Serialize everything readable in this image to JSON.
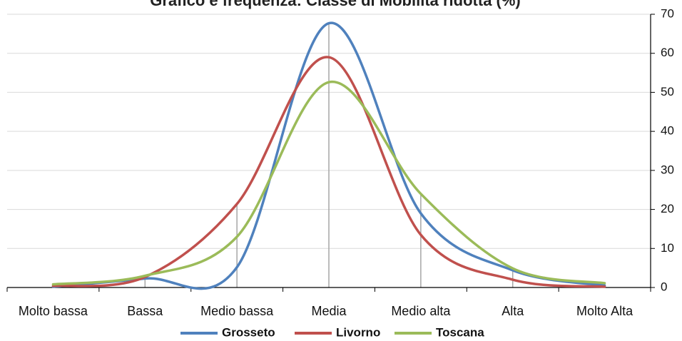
{
  "chart_data": {
    "type": "line",
    "title": "Grafico e frequenza: Classe di Mobilità ridotta (%)",
    "categories": [
      "Molto bassa",
      "Bassa",
      "Medio bassa",
      "Media",
      "Medio alta",
      "Alta",
      "Molto Alta"
    ],
    "series": [
      {
        "name": "Grosseto",
        "color": "#4f81bd",
        "values": [
          0.2,
          2.3,
          5.2,
          67.7,
          19.0,
          4.4,
          0.5
        ]
      },
      {
        "name": "Livorno",
        "color": "#c0504d",
        "values": [
          0.4,
          2.7,
          21.4,
          59.0,
          13.5,
          2.0,
          0.2
        ]
      },
      {
        "name": "Toscana",
        "color": "#9bbb59",
        "values": [
          0.8,
          3.0,
          13.0,
          52.6,
          24.0,
          4.9,
          1.1
        ]
      }
    ],
    "xlabel": "",
    "ylabel": "",
    "ylim": [
      0,
      70
    ],
    "yticks": [
      0,
      10,
      20,
      30,
      40,
      50,
      60,
      70
    ],
    "y_axis_side": "right",
    "grid": true,
    "drop_lines": true,
    "smooth": true,
    "legend_position": "bottom"
  }
}
